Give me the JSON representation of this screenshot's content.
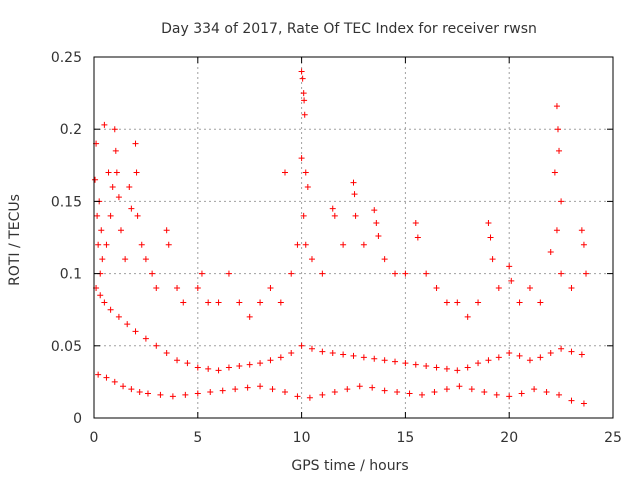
{
  "chart_data": {
    "type": "scatter",
    "title": "Day 334 of 2017, Rate Of TEC Index for receiver rwsn",
    "xlabel": "GPS time / hours",
    "ylabel": "ROTI / TECUs",
    "xlim": [
      0,
      25
    ],
    "ylim": [
      0,
      0.25
    ],
    "x_ticks": [
      "0",
      "5",
      "10",
      "15",
      "20",
      "25"
    ],
    "y_ticks": [
      "0",
      "0.05",
      "0.1",
      "0.15",
      "0.2",
      "0.25"
    ],
    "x_tick_values": [
      0,
      5,
      10,
      15,
      20,
      25
    ],
    "y_tick_values": [
      0,
      0.05,
      0.1,
      0.15,
      0.2,
      0.25
    ],
    "grid": true,
    "legend": "none",
    "marker": "plus",
    "color": "#ff0000",
    "series": [
      {
        "points": [
          [
            0.05,
            0.165
          ],
          [
            0.1,
            0.19
          ],
          [
            0.15,
            0.14
          ],
          [
            0.2,
            0.12
          ],
          [
            0.25,
            0.15
          ],
          [
            0.3,
            0.1
          ],
          [
            0.35,
            0.13
          ],
          [
            0.4,
            0.11
          ],
          [
            0.5,
            0.203
          ],
          [
            0.6,
            0.12
          ],
          [
            0.7,
            0.17
          ],
          [
            0.8,
            0.14
          ],
          [
            0.9,
            0.16
          ],
          [
            1.0,
            0.2
          ],
          [
            1.05,
            0.185
          ],
          [
            1.1,
            0.17
          ],
          [
            1.2,
            0.153
          ],
          [
            1.3,
            0.13
          ],
          [
            1.5,
            0.11
          ],
          [
            1.7,
            0.16
          ],
          [
            1.8,
            0.145
          ],
          [
            2.0,
            0.19
          ],
          [
            2.05,
            0.17
          ],
          [
            2.1,
            0.14
          ],
          [
            2.3,
            0.12
          ],
          [
            2.5,
            0.11
          ],
          [
            2.8,
            0.1
          ],
          [
            3.0,
            0.09
          ],
          [
            3.5,
            0.13
          ],
          [
            3.6,
            0.12
          ],
          [
            4.0,
            0.09
          ],
          [
            4.3,
            0.08
          ],
          [
            5.0,
            0.09
          ],
          [
            5.2,
            0.1
          ],
          [
            5.5,
            0.08
          ],
          [
            6.0,
            0.08
          ],
          [
            6.5,
            0.1
          ],
          [
            7.0,
            0.08
          ],
          [
            7.5,
            0.07
          ],
          [
            8.0,
            0.08
          ],
          [
            8.5,
            0.09
          ],
          [
            9.0,
            0.08
          ],
          [
            9.2,
            0.17
          ],
          [
            9.5,
            0.1
          ],
          [
            9.8,
            0.12
          ],
          [
            10.0,
            0.24
          ],
          [
            10.05,
            0.235
          ],
          [
            10.1,
            0.225
          ],
          [
            10.12,
            0.22
          ],
          [
            10.15,
            0.21
          ],
          [
            10.0,
            0.18
          ],
          [
            10.2,
            0.17
          ],
          [
            10.3,
            0.16
          ],
          [
            10.1,
            0.14
          ],
          [
            10.2,
            0.12
          ],
          [
            10.5,
            0.11
          ],
          [
            11.0,
            0.1
          ],
          [
            11.5,
            0.145
          ],
          [
            11.6,
            0.14
          ],
          [
            12.0,
            0.12
          ],
          [
            12.5,
            0.163
          ],
          [
            12.55,
            0.155
          ],
          [
            12.6,
            0.14
          ],
          [
            13.0,
            0.12
          ],
          [
            13.5,
            0.144
          ],
          [
            13.6,
            0.135
          ],
          [
            13.7,
            0.126
          ],
          [
            14.0,
            0.11
          ],
          [
            14.5,
            0.1
          ],
          [
            15.0,
            0.1
          ],
          [
            15.5,
            0.135
          ],
          [
            15.6,
            0.125
          ],
          [
            16.0,
            0.1
          ],
          [
            16.5,
            0.09
          ],
          [
            17.0,
            0.08
          ],
          [
            17.5,
            0.08
          ],
          [
            18.0,
            0.07
          ],
          [
            18.5,
            0.08
          ],
          [
            19.0,
            0.135
          ],
          [
            19.1,
            0.125
          ],
          [
            19.2,
            0.11
          ],
          [
            19.5,
            0.09
          ],
          [
            20.0,
            0.105
          ],
          [
            20.1,
            0.095
          ],
          [
            20.5,
            0.08
          ],
          [
            21.0,
            0.09
          ],
          [
            21.5,
            0.08
          ],
          [
            22.0,
            0.115
          ],
          [
            22.3,
            0.216
          ],
          [
            22.35,
            0.2
          ],
          [
            22.4,
            0.185
          ],
          [
            22.2,
            0.17
          ],
          [
            22.5,
            0.15
          ],
          [
            22.3,
            0.13
          ],
          [
            22.5,
            0.1
          ],
          [
            23.0,
            0.09
          ],
          [
            23.5,
            0.13
          ],
          [
            23.6,
            0.12
          ],
          [
            23.7,
            0.1
          ],
          [
            0.1,
            0.09
          ],
          [
            0.3,
            0.085
          ],
          [
            0.5,
            0.08
          ],
          [
            0.8,
            0.075
          ],
          [
            1.2,
            0.07
          ],
          [
            1.6,
            0.065
          ],
          [
            2.0,
            0.06
          ],
          [
            2.5,
            0.055
          ],
          [
            3.0,
            0.05
          ],
          [
            3.5,
            0.045
          ],
          [
            4.0,
            0.04
          ],
          [
            4.5,
            0.038
          ],
          [
            5.0,
            0.035
          ],
          [
            5.5,
            0.034
          ],
          [
            6.0,
            0.033
          ],
          [
            6.5,
            0.035
          ],
          [
            7.0,
            0.036
          ],
          [
            7.5,
            0.037
          ],
          [
            8.0,
            0.038
          ],
          [
            8.5,
            0.04
          ],
          [
            9.0,
            0.042
          ],
          [
            9.5,
            0.045
          ],
          [
            10.0,
            0.05
          ],
          [
            10.5,
            0.048
          ],
          [
            11.0,
            0.046
          ],
          [
            11.5,
            0.045
          ],
          [
            12.0,
            0.044
          ],
          [
            12.5,
            0.043
          ],
          [
            13.0,
            0.042
          ],
          [
            13.5,
            0.041
          ],
          [
            14.0,
            0.04
          ],
          [
            14.5,
            0.039
          ],
          [
            15.0,
            0.038
          ],
          [
            15.5,
            0.037
          ],
          [
            16.0,
            0.036
          ],
          [
            16.5,
            0.035
          ],
          [
            17.0,
            0.034
          ],
          [
            17.5,
            0.033
          ],
          [
            18.0,
            0.035
          ],
          [
            18.5,
            0.038
          ],
          [
            19.0,
            0.04
          ],
          [
            19.5,
            0.042
          ],
          [
            20.0,
            0.045
          ],
          [
            20.5,
            0.043
          ],
          [
            21.0,
            0.04
          ],
          [
            21.5,
            0.042
          ],
          [
            22.0,
            0.045
          ],
          [
            22.5,
            0.048
          ],
          [
            23.0,
            0.046
          ],
          [
            23.5,
            0.044
          ],
          [
            0.2,
            0.03
          ],
          [
            0.6,
            0.028
          ],
          [
            1.0,
            0.025
          ],
          [
            1.4,
            0.022
          ],
          [
            1.8,
            0.02
          ],
          [
            2.2,
            0.018
          ],
          [
            2.6,
            0.017
          ],
          [
            3.2,
            0.016
          ],
          [
            3.8,
            0.015
          ],
          [
            4.4,
            0.016
          ],
          [
            5.0,
            0.017
          ],
          [
            5.6,
            0.018
          ],
          [
            6.2,
            0.019
          ],
          [
            6.8,
            0.02
          ],
          [
            7.4,
            0.021
          ],
          [
            8.0,
            0.022
          ],
          [
            8.6,
            0.02
          ],
          [
            9.2,
            0.018
          ],
          [
            9.8,
            0.015
          ],
          [
            10.4,
            0.014
          ],
          [
            11.0,
            0.016
          ],
          [
            11.6,
            0.018
          ],
          [
            12.2,
            0.02
          ],
          [
            12.8,
            0.022
          ],
          [
            13.4,
            0.021
          ],
          [
            14.0,
            0.019
          ],
          [
            14.6,
            0.018
          ],
          [
            15.2,
            0.017
          ],
          [
            15.8,
            0.016
          ],
          [
            16.4,
            0.018
          ],
          [
            17.0,
            0.02
          ],
          [
            17.6,
            0.022
          ],
          [
            18.2,
            0.02
          ],
          [
            18.8,
            0.018
          ],
          [
            19.4,
            0.016
          ],
          [
            20.0,
            0.015
          ],
          [
            20.6,
            0.017
          ],
          [
            21.2,
            0.02
          ],
          [
            21.8,
            0.018
          ],
          [
            22.4,
            0.016
          ],
          [
            23.0,
            0.012
          ],
          [
            23.6,
            0.01
          ]
        ]
      }
    ]
  }
}
